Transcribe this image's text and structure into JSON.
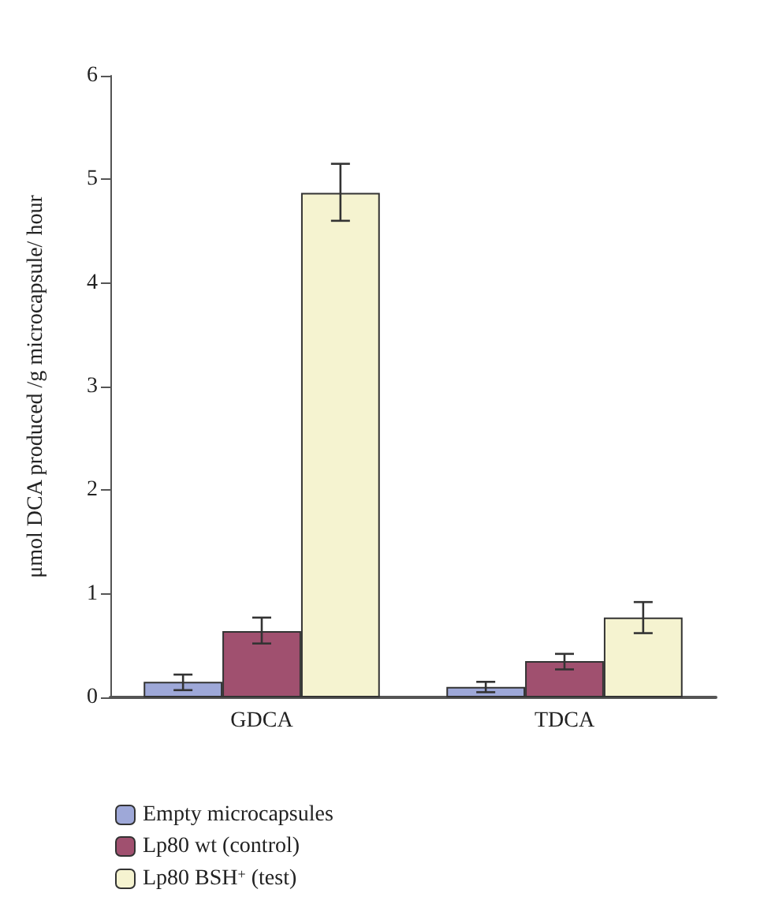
{
  "chart_data": {
    "type": "bar",
    "ylabel": "μmol DCA produced /g microcapsule/ hour",
    "categories": [
      "GDCA",
      "TDCA"
    ],
    "series": [
      {
        "name": "Empty microcapsules",
        "color": "#9ea8d8",
        "values": [
          0.15,
          0.1
        ],
        "errors": [
          [
            0.07,
            0.22
          ],
          [
            0.05,
            0.15
          ]
        ]
      },
      {
        "name": "Lp80 wt (control)",
        "color": "#a0506f",
        "values": [
          0.64,
          0.35
        ],
        "errors": [
          [
            0.52,
            0.77
          ],
          [
            0.27,
            0.42
          ]
        ]
      },
      {
        "name": "Lp80 BSH$^{+}$ (test)",
        "color": "#f5f3d0",
        "values": [
          4.87,
          0.77
        ],
        "errors": [
          [
            4.6,
            5.15
          ],
          [
            0.62,
            0.92
          ]
        ]
      }
    ],
    "ylim": [
      0,
      6
    ],
    "yticks": [
      0,
      1,
      2,
      3,
      4,
      5,
      6
    ],
    "grid": false,
    "legend": "bottom left"
  }
}
